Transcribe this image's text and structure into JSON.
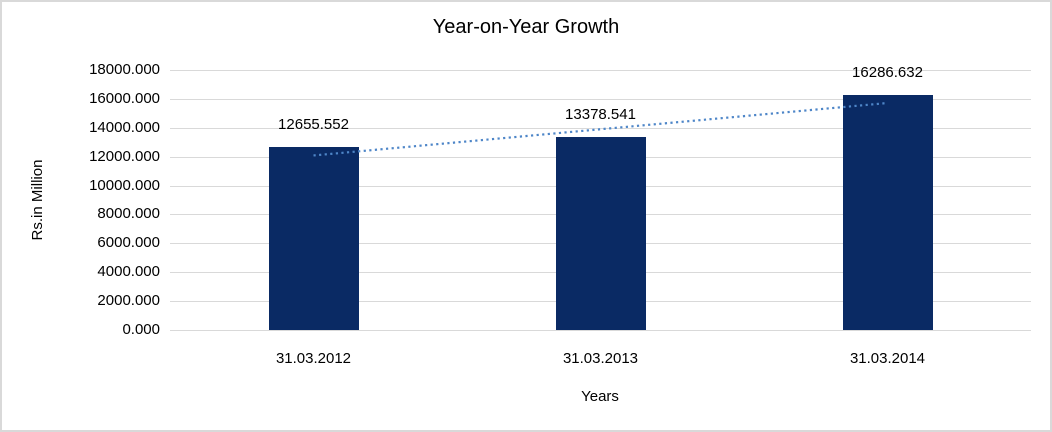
{
  "chart_data": {
    "type": "bar",
    "title": "Year-on-Year Growth",
    "categories": [
      "31.03.2012",
      "31.03.2013",
      "31.03.2014"
    ],
    "values": [
      12655.552,
      13378.541,
      16286.632
    ],
    "value_labels": [
      "12655.552",
      "13378.541",
      "16286.632"
    ],
    "xlabel": "Years",
    "ylabel": "Rs.in Million",
    "ylim": [
      0,
      18000
    ],
    "ytick_step": 2000,
    "ytick_labels": [
      "0.000",
      "2000.000",
      "4000.000",
      "6000.000",
      "8000.000",
      "10000.000",
      "12000.000",
      "14000.000",
      "16000.000",
      "18000.000"
    ],
    "grid": true,
    "legend_position": "none",
    "trendline": {
      "type": "linear",
      "style": "dotted"
    },
    "colors": {
      "bar": "#0A2A64",
      "trendline": "#4E86C8",
      "gridline": "#D9D9D9",
      "frame_border": "#D9D9D9",
      "text": "#000000",
      "background": "#FFFFFF"
    }
  }
}
